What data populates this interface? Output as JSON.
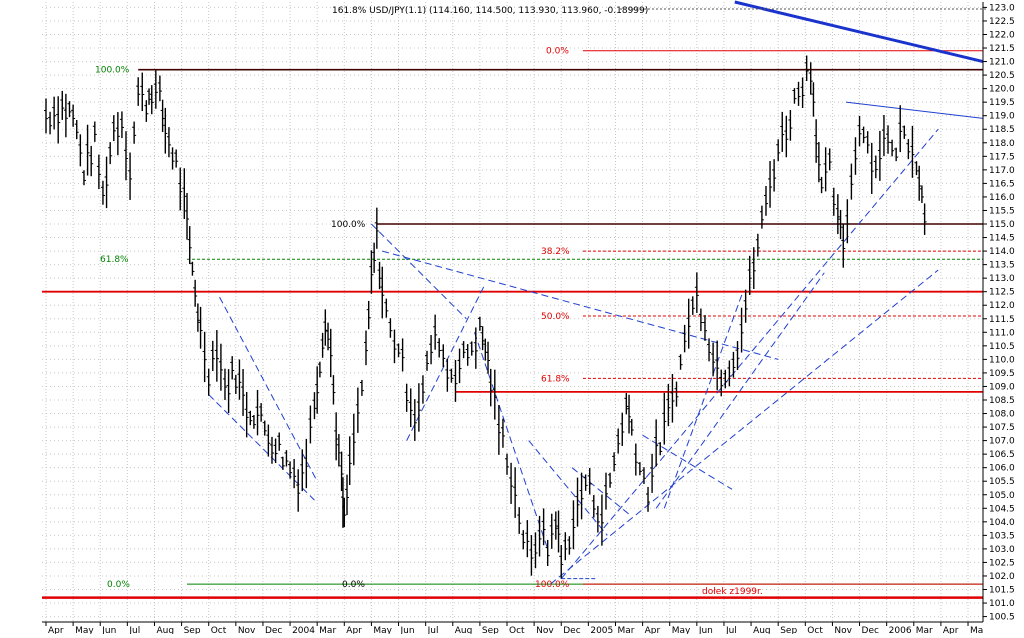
{
  "header": {
    "legend_text": "161.8% USD/JPY(1.1) (114.160, 114.500, 113.930, 113.960, -0.18999)"
  },
  "colors": {
    "background": "#ffffff",
    "grid": "#c8c8c8",
    "price": "#000000",
    "trendline": "#2040d0",
    "major_trend": "#1a33cc",
    "resistance": "#e00000",
    "fib_red": "#e00000",
    "fib_green": "#008000",
    "dark_line": "#400000"
  },
  "chart_data": {
    "type": "bar",
    "title": "",
    "xlabel": "",
    "ylabel": "",
    "ylim": [
      100.3,
      123.2
    ],
    "grid": true,
    "series_style": "OHLC bars, weekly",
    "x_tick_labels": [
      "Apr",
      "May",
      "Jun",
      "Jul",
      "Aug",
      "Sep",
      "Oct",
      "Nov",
      "Dec",
      "2004",
      "Mar",
      "Apr",
      "May",
      "Jun",
      "Jul",
      "Aug",
      "Sep",
      "Oct",
      "Nov",
      "Dec",
      "2005",
      "Mar",
      "Apr",
      "May",
      "Jun",
      "Jul",
      "Aug",
      "Sep",
      "Oct",
      "Nov",
      "Dec",
      "2006",
      "Mar",
      "Apr",
      "Ma"
    ],
    "y_tick_labels": [
      "100.5",
      "101.0",
      "101.5",
      "102.0",
      "102.5",
      "103.0",
      "103.5",
      "104.0",
      "104.5",
      "105.0",
      "105.5",
      "106.0",
      "106.5",
      "107.0",
      "107.5",
      "108.0",
      "108.5",
      "109.0",
      "109.5",
      "110.0",
      "110.5",
      "111.0",
      "111.5",
      "112.0",
      "112.5",
      "113.0",
      "113.5",
      "114.0",
      "114.5",
      "115.0",
      "115.5",
      "116.0",
      "116.5",
      "117.0",
      "117.5",
      "118.0",
      "118.5",
      "119.0",
      "119.5",
      "120.0",
      "120.5",
      "121.0",
      "121.5",
      "122.0",
      "122.5",
      "123.0"
    ],
    "price_path": [
      {
        "x": 0,
        "y": 119.0
      },
      {
        "x": 0.6,
        "y": 119.3
      },
      {
        "x": 1.0,
        "y": 119.0
      },
      {
        "x": 1.4,
        "y": 117.0
      },
      {
        "x": 1.8,
        "y": 118.0
      },
      {
        "x": 2.1,
        "y": 116.0
      },
      {
        "x": 2.5,
        "y": 118.5
      },
      {
        "x": 2.8,
        "y": 118.8
      },
      {
        "x": 3.1,
        "y": 117.0
      },
      {
        "x": 3.4,
        "y": 119.8
      },
      {
        "x": 3.7,
        "y": 119.5
      },
      {
        "x": 3.9,
        "y": 120.0
      },
      {
        "x": 4.2,
        "y": 119.6
      },
      {
        "x": 4.4,
        "y": 118.5
      },
      {
        "x": 4.8,
        "y": 117.2
      },
      {
        "x": 5.1,
        "y": 115.8
      },
      {
        "x": 5.3,
        "y": 114.0
      },
      {
        "x": 5.5,
        "y": 112.6
      },
      {
        "x": 5.7,
        "y": 111.0
      },
      {
        "x": 6.0,
        "y": 109.6
      },
      {
        "x": 6.3,
        "y": 110.5
      },
      {
        "x": 6.6,
        "y": 109.0
      },
      {
        "x": 7.0,
        "y": 109.5
      },
      {
        "x": 7.4,
        "y": 108.2
      },
      {
        "x": 7.8,
        "y": 108.0
      },
      {
        "x": 8.2,
        "y": 107.2
      },
      {
        "x": 8.6,
        "y": 106.7
      },
      {
        "x": 9.0,
        "y": 106.0
      },
      {
        "x": 9.3,
        "y": 105.6
      },
      {
        "x": 9.6,
        "y": 106.3
      },
      {
        "x": 9.9,
        "y": 108.5
      },
      {
        "x": 10.1,
        "y": 110.0
      },
      {
        "x": 10.3,
        "y": 111.6
      },
      {
        "x": 10.5,
        "y": 110.2
      },
      {
        "x": 10.7,
        "y": 107.5
      },
      {
        "x": 10.9,
        "y": 105.5
      },
      {
        "x": 11.0,
        "y": 104.0
      },
      {
        "x": 11.2,
        "y": 106.0
      },
      {
        "x": 11.5,
        "y": 108.0
      },
      {
        "x": 11.8,
        "y": 110.0
      },
      {
        "x": 12.0,
        "y": 113.0
      },
      {
        "x": 12.2,
        "y": 114.5
      },
      {
        "x": 12.4,
        "y": 112.5
      },
      {
        "x": 12.7,
        "y": 111.0
      },
      {
        "x": 13.0,
        "y": 110.5
      },
      {
        "x": 13.3,
        "y": 109.0
      },
      {
        "x": 13.6,
        "y": 108.0
      },
      {
        "x": 13.9,
        "y": 108.8
      },
      {
        "x": 14.2,
        "y": 110.5
      },
      {
        "x": 14.5,
        "y": 110.8
      },
      {
        "x": 14.8,
        "y": 109.5
      },
      {
        "x": 15.1,
        "y": 109.6
      },
      {
        "x": 15.4,
        "y": 110.0
      },
      {
        "x": 15.7,
        "y": 110.5
      },
      {
        "x": 16.0,
        "y": 111.0
      },
      {
        "x": 16.2,
        "y": 110.5
      },
      {
        "x": 16.4,
        "y": 109.2
      },
      {
        "x": 16.7,
        "y": 107.5
      },
      {
        "x": 17.0,
        "y": 106.5
      },
      {
        "x": 17.3,
        "y": 105.0
      },
      {
        "x": 17.6,
        "y": 103.5
      },
      {
        "x": 17.9,
        "y": 102.5
      },
      {
        "x": 18.2,
        "y": 103.8
      },
      {
        "x": 18.5,
        "y": 103.0
      },
      {
        "x": 18.8,
        "y": 104.2
      },
      {
        "x": 19.0,
        "y": 102.5
      },
      {
        "x": 19.3,
        "y": 103.5
      },
      {
        "x": 19.6,
        "y": 104.5
      },
      {
        "x": 19.9,
        "y": 105.5
      },
      {
        "x": 20.2,
        "y": 104.8
      },
      {
        "x": 20.5,
        "y": 104.2
      },
      {
        "x": 20.8,
        "y": 105.5
      },
      {
        "x": 21.1,
        "y": 107.0
      },
      {
        "x": 21.4,
        "y": 108.3
      },
      {
        "x": 21.6,
        "y": 107.5
      },
      {
        "x": 21.9,
        "y": 106.0
      },
      {
        "x": 22.2,
        "y": 105.2
      },
      {
        "x": 22.5,
        "y": 106.5
      },
      {
        "x": 22.8,
        "y": 107.5
      },
      {
        "x": 23.1,
        "y": 108.5
      },
      {
        "x": 23.4,
        "y": 109.8
      },
      {
        "x": 23.7,
        "y": 111.5
      },
      {
        "x": 24.0,
        "y": 112.3
      },
      {
        "x": 24.3,
        "y": 111.5
      },
      {
        "x": 24.6,
        "y": 110.0
      },
      {
        "x": 24.9,
        "y": 109.5
      },
      {
        "x": 25.2,
        "y": 109.8
      },
      {
        "x": 25.5,
        "y": 110.5
      },
      {
        "x": 25.8,
        "y": 112.0
      },
      {
        "x": 26.1,
        "y": 113.5
      },
      {
        "x": 26.4,
        "y": 115.0
      },
      {
        "x": 26.7,
        "y": 116.5
      },
      {
        "x": 27.0,
        "y": 117.8
      },
      {
        "x": 27.3,
        "y": 118.5
      },
      {
        "x": 27.6,
        "y": 119.5
      },
      {
        "x": 27.9,
        "y": 120.3
      },
      {
        "x": 28.2,
        "y": 120.8
      },
      {
        "x": 28.4,
        "y": 118.5
      },
      {
        "x": 28.6,
        "y": 116.2
      },
      {
        "x": 28.9,
        "y": 117.0
      },
      {
        "x": 29.2,
        "y": 115.0
      },
      {
        "x": 29.4,
        "y": 114.3
      },
      {
        "x": 29.7,
        "y": 116.5
      },
      {
        "x": 30.0,
        "y": 118.8
      },
      {
        "x": 30.3,
        "y": 118.0
      },
      {
        "x": 30.6,
        "y": 117.0
      },
      {
        "x": 30.9,
        "y": 118.5
      },
      {
        "x": 31.2,
        "y": 117.5
      },
      {
        "x": 31.5,
        "y": 118.3
      },
      {
        "x": 31.8,
        "y": 118.2
      },
      {
        "x": 32.1,
        "y": 117.5
      },
      {
        "x": 32.3,
        "y": 116.0
      },
      {
        "x": 32.5,
        "y": 114.8
      }
    ],
    "annotations": {
      "fib_left": [
        {
          "label": "100.0%",
          "value": 120.7
        },
        {
          "label": "61.8%",
          "value": 113.7
        },
        {
          "label": "0.0%",
          "value": 101.7
        }
      ],
      "fib_mid": [
        {
          "label": "100.0%",
          "value": 115.0
        },
        {
          "label": "0.0%",
          "value": 101.7
        }
      ],
      "fib_right": [
        {
          "label": "0.0%",
          "value": 121.4
        },
        {
          "label": "38.2%",
          "value": 114.0
        },
        {
          "label": "50.0%",
          "value": 111.6
        },
        {
          "label": "61.8%",
          "value": 109.3
        },
        {
          "label": "100.0%",
          "value": 101.7
        }
      ],
      "support_label": "dołek z1999r.",
      "horizontal_red_levels": [
        112.5,
        108.8,
        101.2
      ],
      "horizontal_dark_levels": [
        120.7,
        115.0
      ]
    }
  }
}
